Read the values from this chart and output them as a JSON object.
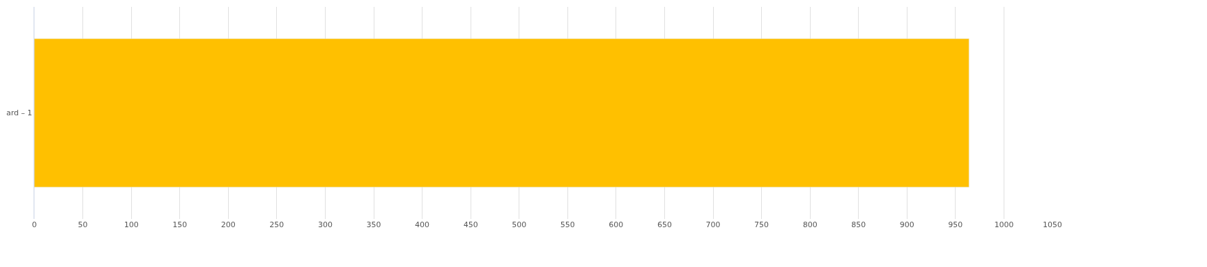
{
  "chart_data": {
    "type": "bar",
    "orientation": "horizontal",
    "categories": [
      "ard – 1"
    ],
    "series": [
      {
        "color": "#ffc000",
        "values": [
          964
        ]
      }
    ],
    "xlim": [
      0,
      1050
    ],
    "xticks": [
      0,
      50,
      100,
      150,
      200,
      250,
      300,
      350,
      400,
      450,
      500,
      550,
      600,
      650,
      700,
      750,
      800,
      850,
      900,
      950,
      1000,
      1050
    ],
    "grid": "x",
    "legend": false
  }
}
